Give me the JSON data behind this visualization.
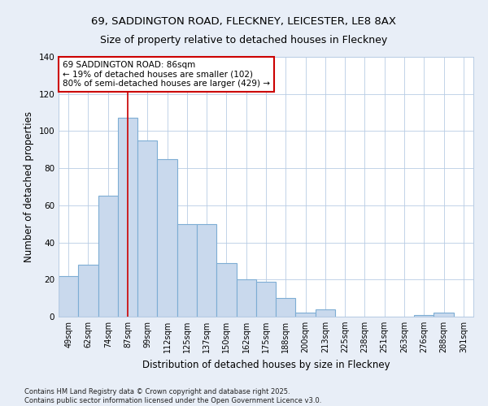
{
  "title1": "69, SADDINGTON ROAD, FLECKNEY, LEICESTER, LE8 8AX",
  "title2": "Size of property relative to detached houses in Fleckney",
  "xlabel": "Distribution of detached houses by size in Fleckney",
  "ylabel": "Number of detached properties",
  "categories": [
    "49sqm",
    "62sqm",
    "74sqm",
    "87sqm",
    "99sqm",
    "112sqm",
    "125sqm",
    "137sqm",
    "150sqm",
    "162sqm",
    "175sqm",
    "188sqm",
    "200sqm",
    "213sqm",
    "225sqm",
    "238sqm",
    "251sqm",
    "263sqm",
    "276sqm",
    "288sqm",
    "301sqm"
  ],
  "values": [
    22,
    28,
    65,
    107,
    95,
    85,
    50,
    50,
    29,
    20,
    19,
    10,
    2,
    4,
    0,
    0,
    0,
    0,
    1,
    2,
    0
  ],
  "bar_color": "#c9d9ed",
  "bar_edge_color": "#7dadd4",
  "vline_x_idx": 3,
  "vline_color": "#cc0000",
  "annotation_text": "69 SADDINGTON ROAD: 86sqm\n← 19% of detached houses are smaller (102)\n80% of semi-detached houses are larger (429) →",
  "annotation_box_color": "#ffffff",
  "annotation_box_edge": "#cc0000",
  "ylim": [
    0,
    140
  ],
  "yticks": [
    0,
    20,
    40,
    60,
    80,
    100,
    120,
    140
  ],
  "footer": "Contains HM Land Registry data © Crown copyright and database right 2025.\nContains public sector information licensed under the Open Government Licence v3.0.",
  "bg_color": "#e8eef7",
  "plot_bg_color": "#ffffff",
  "grid_color": "#b8cce4",
  "title_fontsize": 9.5,
  "subtitle_fontsize": 9,
  "axis_label_fontsize": 8.5,
  "tick_fontsize": 7,
  "annotation_fontsize": 7.5,
  "footer_fontsize": 6
}
